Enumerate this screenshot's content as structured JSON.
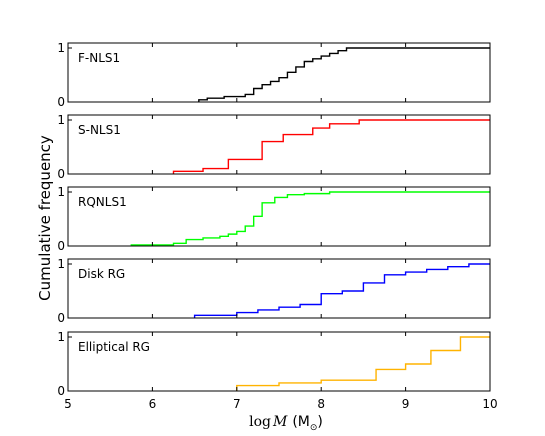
{
  "figure": {
    "ylabel": "Cumulative frequency",
    "xlabel_math": "log",
    "xlabel_var": "M",
    "xlabel_unit_open": "(M",
    "xlabel_unit_sub": "⊙",
    "xlabel_unit_close": ")"
  },
  "chart_data": [
    {
      "type": "line",
      "step": true,
      "label": "F-NLS1",
      "color": "#000000",
      "xlim": [
        5,
        10
      ],
      "ylim": [
        0,
        1
      ],
      "xticks": [
        "5",
        "6",
        "7",
        "8",
        "9",
        "10"
      ],
      "yticks": [
        "0",
        "1"
      ],
      "x": [
        6.55,
        6.65,
        6.85,
        7.1,
        7.2,
        7.3,
        7.4,
        7.5,
        7.6,
        7.7,
        7.8,
        7.9,
        8.0,
        8.1,
        8.2,
        8.3,
        10.0
      ],
      "y": [
        0.04,
        0.07,
        0.1,
        0.14,
        0.25,
        0.32,
        0.38,
        0.45,
        0.55,
        0.65,
        0.75,
        0.8,
        0.85,
        0.9,
        0.95,
        1.0,
        1.0
      ]
    },
    {
      "type": "line",
      "step": true,
      "label": "S-NLS1",
      "color": "#ff0000",
      "xlim": [
        5,
        10
      ],
      "ylim": [
        0,
        1
      ],
      "xticks": [
        "5",
        "6",
        "7",
        "8",
        "9",
        "10"
      ],
      "yticks": [
        "0",
        "1"
      ],
      "x": [
        6.25,
        6.6,
        6.9,
        7.3,
        7.55,
        7.9,
        8.1,
        8.45,
        10.0
      ],
      "y": [
        0.05,
        0.1,
        0.27,
        0.6,
        0.73,
        0.85,
        0.93,
        1.0,
        1.0
      ]
    },
    {
      "type": "line",
      "step": true,
      "label": "RQNLS1",
      "color": "#00ff00",
      "xlim": [
        5,
        10
      ],
      "ylim": [
        0,
        1
      ],
      "xticks": [
        "5",
        "6",
        "7",
        "8",
        "9",
        "10"
      ],
      "yticks": [
        "0",
        "1"
      ],
      "x": [
        5.75,
        6.25,
        6.4,
        6.6,
        6.8,
        6.9,
        7.0,
        7.1,
        7.2,
        7.3,
        7.45,
        7.6,
        7.8,
        8.1,
        10.0
      ],
      "y": [
        0.02,
        0.05,
        0.12,
        0.15,
        0.18,
        0.22,
        0.27,
        0.37,
        0.55,
        0.8,
        0.9,
        0.95,
        0.97,
        1.0,
        1.0
      ]
    },
    {
      "type": "line",
      "step": true,
      "label": "Disk RG",
      "color": "#0000ff",
      "xlim": [
        5,
        10
      ],
      "ylim": [
        0,
        1
      ],
      "xticks": [
        "5",
        "6",
        "7",
        "8",
        "9",
        "10"
      ],
      "yticks": [
        "0",
        "1"
      ],
      "x": [
        6.5,
        7.0,
        7.25,
        7.5,
        7.75,
        8.0,
        8.25,
        8.5,
        8.75,
        9.0,
        9.25,
        9.5,
        9.75,
        10.0
      ],
      "y": [
        0.05,
        0.1,
        0.15,
        0.2,
        0.25,
        0.45,
        0.5,
        0.65,
        0.8,
        0.85,
        0.9,
        0.95,
        1.0,
        1.0
      ]
    },
    {
      "type": "line",
      "step": true,
      "label": "Elliptical RG",
      "color": "#ffb300",
      "xlim": [
        5,
        10
      ],
      "ylim": [
        0,
        1
      ],
      "xticks": [
        "5",
        "6",
        "7",
        "8",
        "9",
        "10"
      ],
      "yticks": [
        "0",
        "1"
      ],
      "x": [
        7.0,
        7.5,
        8.0,
        8.65,
        9.0,
        9.3,
        9.65,
        10.0
      ],
      "y": [
        0.1,
        0.15,
        0.2,
        0.4,
        0.5,
        0.75,
        1.0,
        1.0
      ]
    }
  ]
}
